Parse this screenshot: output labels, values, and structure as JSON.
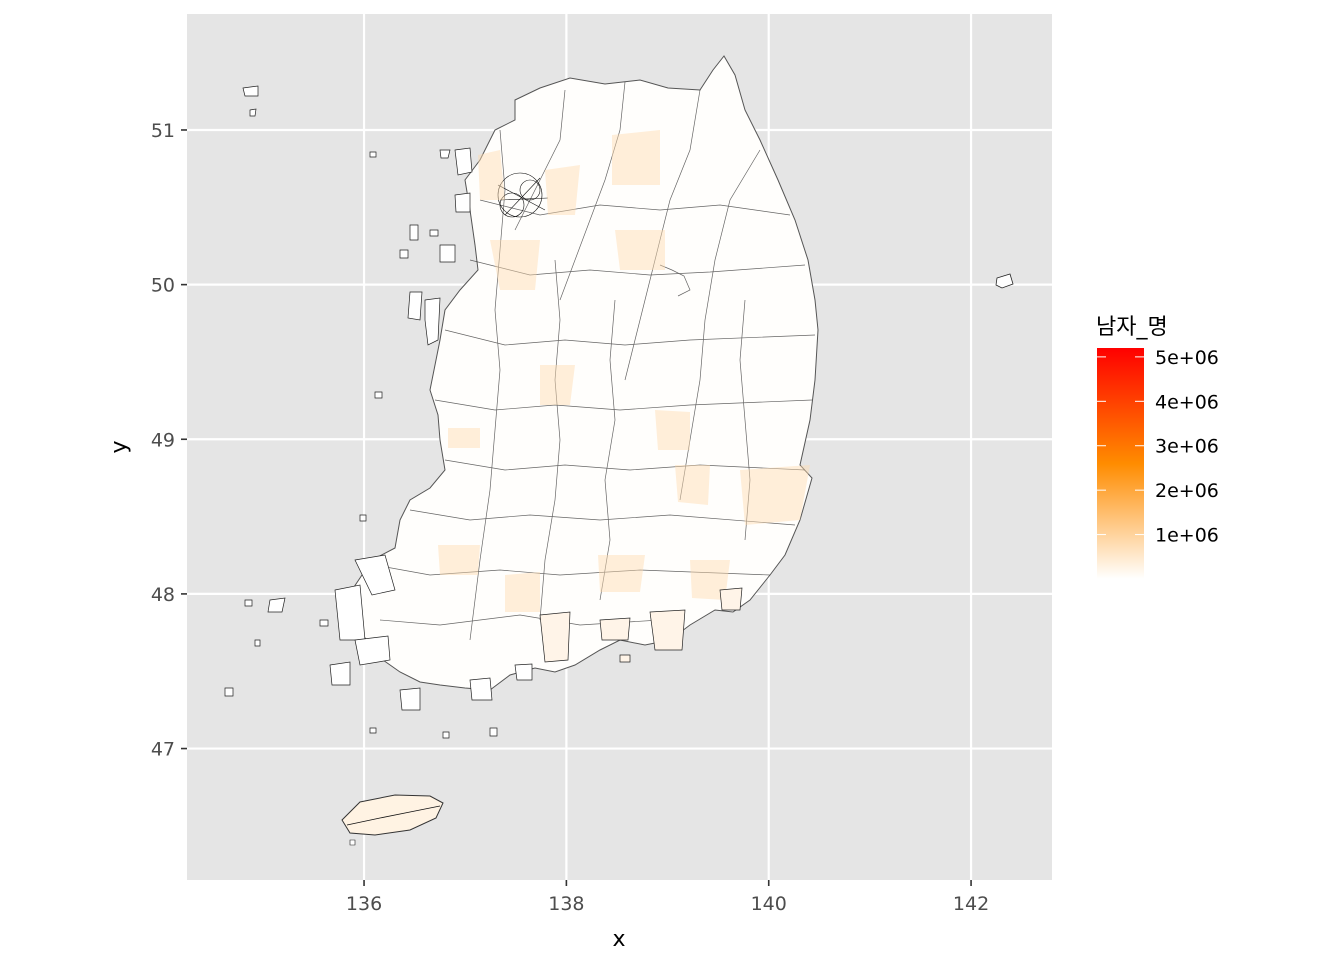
{
  "chart_data": {
    "type": "choropleth map",
    "xlabel": "x",
    "ylabel": "y",
    "xlim": [
      134.25,
      142.8
    ],
    "ylim": [
      46.15,
      51.75
    ],
    "x_ticks": [
      136,
      138,
      140,
      142
    ],
    "y_ticks": [
      47,
      48,
      49,
      50,
      51
    ],
    "x_tick_labels": [
      "136",
      "138",
      "140",
      "142"
    ],
    "y_tick_labels": [
      "47",
      "48",
      "49",
      "50",
      "51"
    ],
    "grid": true,
    "legend": {
      "title": "남자_명",
      "placement": "right",
      "min": 0,
      "max": 5200000,
      "breaks": [
        1000000,
        2000000,
        3000000,
        4000000,
        5000000
      ],
      "labels": [
        "1e+06",
        "2e+06",
        "3e+06",
        "4e+06",
        "5e+06"
      ],
      "colors": [
        "#ffffff",
        "#ff8c00",
        "#ff0000"
      ]
    },
    "panel_color": "#e5e5e5",
    "grid_color": "#ffffff",
    "land_fill": "#fffefc",
    "border_color": "#000000"
  }
}
